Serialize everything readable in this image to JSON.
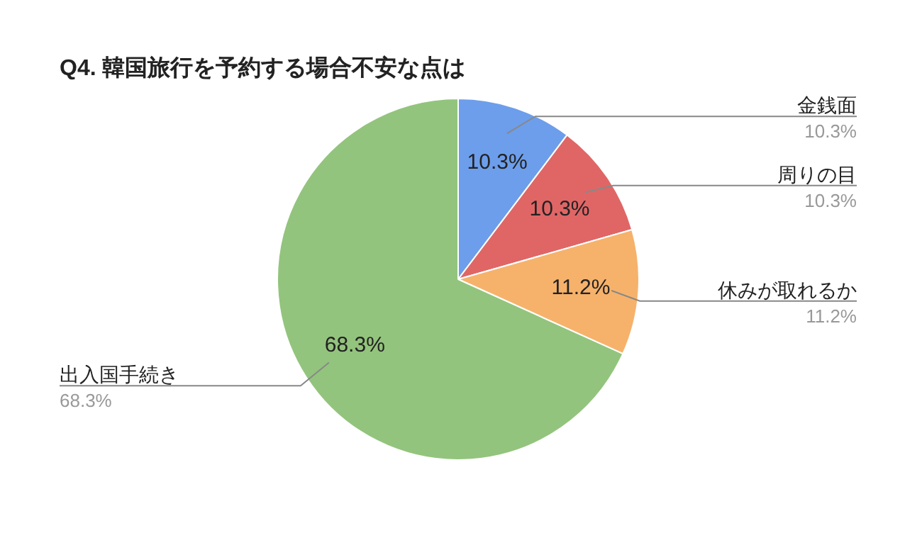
{
  "chart_data": {
    "type": "pie",
    "title": "Q4. 韓国旅行を予約する場合不安な点は",
    "categories": [
      "金銭面",
      "周りの目",
      "休みが取れるか",
      "出入国手続き"
    ],
    "values": [
      10.3,
      10.3,
      11.2,
      68.3
    ],
    "value_labels": [
      "10.3%",
      "10.3%",
      "11.2%",
      "68.3%"
    ],
    "colors": [
      "#6d9eeb",
      "#e06666",
      "#f6b26b",
      "#93c47d"
    ],
    "legend": false
  }
}
